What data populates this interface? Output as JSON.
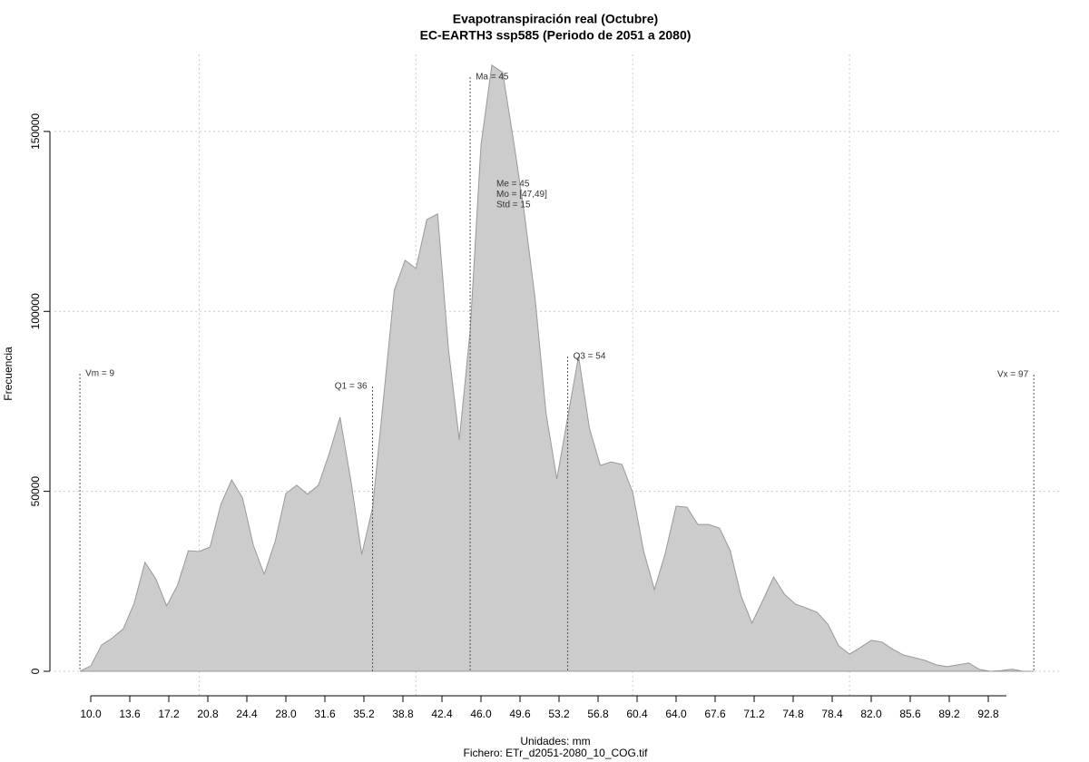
{
  "chart_data": {
    "type": "area",
    "title": "Evapotranspiración real (Octubre)",
    "subtitle": "EC-EARTH3 ssp585 (Periodo de 2051 a 2080)",
    "xlabel": "Unidades: mm",
    "caption": "Fichero: ETr_d2051-2080_10_COG.tif",
    "ylabel": "Frecuencia",
    "color": "#cccccc",
    "x": [
      9,
      10,
      11,
      12,
      13,
      14,
      15,
      16,
      17,
      18,
      19,
      20,
      21,
      22,
      23,
      24,
      25,
      26,
      27,
      28,
      29,
      30,
      31,
      32,
      33,
      34,
      35,
      36,
      37,
      38,
      39,
      40,
      41,
      42,
      43,
      44,
      45,
      46,
      47,
      48,
      49,
      50,
      51,
      52,
      53,
      54,
      55,
      56,
      57,
      58,
      59,
      60,
      61,
      62,
      63,
      64,
      65,
      66,
      67,
      68,
      69,
      70,
      71,
      72,
      73,
      74,
      75,
      76,
      77,
      78,
      79,
      80,
      81,
      82,
      83,
      84,
      85,
      86,
      87,
      88,
      89,
      90,
      91,
      92,
      93,
      94,
      95,
      96,
      97
    ],
    "values": [
      0,
      1500,
      7300,
      9300,
      11800,
      18900,
      30300,
      25700,
      18200,
      23900,
      33500,
      33300,
      34500,
      46400,
      53200,
      48200,
      35000,
      27000,
      36000,
      49400,
      51700,
      49200,
      51700,
      60500,
      70600,
      52900,
      32500,
      45400,
      75600,
      105900,
      114200,
      111900,
      125500,
      127100,
      89500,
      64300,
      94500,
      146200,
      168400,
      166400,
      147500,
      127300,
      103400,
      71800,
      53400,
      70600,
      87500,
      67600,
      57200,
      58200,
      57500,
      49700,
      33500,
      22700,
      32800,
      45900,
      45600,
      40800,
      40800,
      39800,
      33500,
      20900,
      13400,
      19700,
      26200,
      21400,
      18700,
      17600,
      16400,
      13100,
      7100,
      4800,
      6600,
      8600,
      8100,
      6100,
      4500,
      3800,
      3000,
      1800,
      1300,
      1800,
      2300,
      500,
      0,
      200,
      600,
      0,
      0
    ],
    "xlim": [
      6.65,
      99.58
    ],
    "ylim": [
      -5040,
      171400
    ],
    "xticks": [
      {
        "value": 10,
        "label": "10.0"
      },
      {
        "value": 13.6,
        "label": "13.6"
      },
      {
        "value": 17.2,
        "label": "17.2"
      },
      {
        "value": 20.8,
        "label": "20.8"
      },
      {
        "value": 24.4,
        "label": "24.4"
      },
      {
        "value": 28,
        "label": "28.0"
      },
      {
        "value": 31.6,
        "label": "31.6"
      },
      {
        "value": 35.2,
        "label": "35.2"
      },
      {
        "value": 38.8,
        "label": "38.8"
      },
      {
        "value": 42.4,
        "label": "42.4"
      },
      {
        "value": 46,
        "label": "46.0"
      },
      {
        "value": 49.6,
        "label": "49.6"
      },
      {
        "value": 53.2,
        "label": "53.2"
      },
      {
        "value": 56.8,
        "label": "56.8"
      },
      {
        "value": 60.4,
        "label": "60.4"
      },
      {
        "value": 64,
        "label": "64.0"
      },
      {
        "value": 67.6,
        "label": "67.6"
      },
      {
        "value": 71.2,
        "label": "71.2"
      },
      {
        "value": 74.8,
        "label": "74.8"
      },
      {
        "value": 78.4,
        "label": "78.4"
      },
      {
        "value": 82,
        "label": "82.0"
      },
      {
        "value": 85.6,
        "label": "85.6"
      },
      {
        "value": 89.2,
        "label": "89.2"
      },
      {
        "value": 92.8,
        "label": "92.8"
      }
    ],
    "yticks": [
      0,
      50000,
      100000,
      150000
    ],
    "xgrid": [
      20,
      40,
      60,
      80
    ],
    "grid": true,
    "markers": [
      {
        "label": "Vm = 9",
        "x": 9
      },
      {
        "label": "Q1 = 36",
        "x": 36
      },
      {
        "label": "Ma = 45",
        "x": 45
      },
      {
        "label": "Q3 = 54",
        "x": 54
      },
      {
        "label": "Vx = 97",
        "x": 97
      }
    ],
    "annotations": [
      "Me = 45",
      "Mo = [47,49]",
      "Std = 15"
    ]
  }
}
